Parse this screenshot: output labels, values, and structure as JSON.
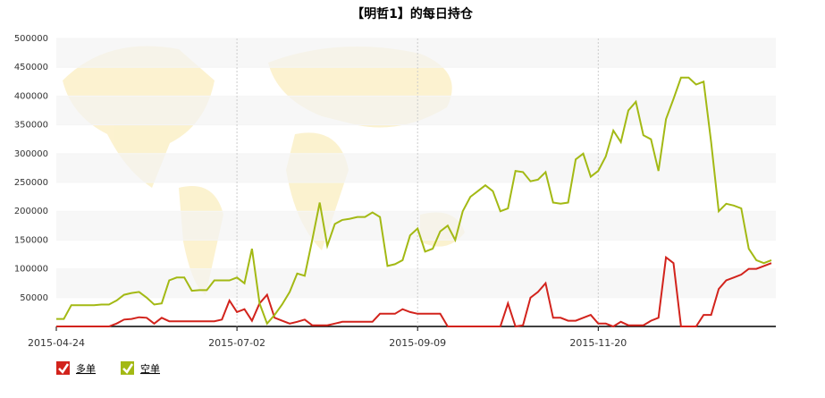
{
  "chart_data": {
    "type": "line",
    "title": "【明哲1】的每日持仓",
    "categories": [
      "2015-04-24",
      null,
      null,
      null,
      null,
      null,
      null,
      null,
      null,
      null,
      null,
      null,
      null,
      null,
      null,
      null,
      null,
      null,
      null,
      null,
      null,
      null,
      null,
      null,
      "2015-07-02",
      null,
      null,
      null,
      null,
      null,
      null,
      null,
      null,
      null,
      null,
      null,
      null,
      null,
      null,
      null,
      null,
      null,
      null,
      null,
      null,
      null,
      null,
      null,
      "2015-09-09",
      null,
      null,
      null,
      null,
      null,
      null,
      null,
      null,
      null,
      null,
      null,
      null,
      null,
      null,
      null,
      null,
      null,
      null,
      null,
      null,
      null,
      null,
      null,
      "2015-11-20",
      null,
      null,
      null,
      null,
      null,
      null,
      null,
      null,
      null,
      null,
      null,
      null,
      null,
      null,
      null,
      null,
      null,
      null,
      null,
      null,
      null,
      null,
      null
    ],
    "series": [
      {
        "name": "多单",
        "color": "#d2231c",
        "values": [
          0,
          0,
          0,
          0,
          0,
          0,
          0,
          0,
          5000,
          12000,
          13000,
          16000,
          15000,
          5000,
          15000,
          9000,
          9000,
          9000,
          9000,
          9000,
          9000,
          9000,
          12000,
          45000,
          25000,
          30000,
          10000,
          40000,
          55000,
          15000,
          10000,
          5000,
          8000,
          12000,
          2000,
          2000,
          2000,
          5000,
          8000,
          8000,
          8000,
          8000,
          8000,
          22000,
          22000,
          22000,
          30000,
          25000,
          22000,
          22000,
          22000,
          22000,
          0,
          0,
          0,
          0,
          0,
          0,
          0,
          0,
          40000,
          0,
          2000,
          50000,
          60000,
          75000,
          15000,
          15000,
          10000,
          10000,
          15000,
          20000,
          5000,
          5000,
          0,
          8000,
          2000,
          2000,
          2000,
          10000,
          15000,
          120000,
          110000,
          0,
          0,
          0,
          20000,
          20000,
          65000,
          80000,
          85000,
          90000,
          100000,
          100000,
          105000,
          110000
        ]
      },
      {
        "name": "空单",
        "color": "#a3b914",
        "values": [
          13000,
          13000,
          37000,
          37000,
          37000,
          37000,
          38000,
          38000,
          45000,
          55000,
          58000,
          60000,
          50000,
          38000,
          40000,
          80000,
          85000,
          85000,
          62000,
          63000,
          63000,
          80000,
          80000,
          80000,
          85000,
          75000,
          135000,
          40000,
          5000,
          20000,
          38000,
          60000,
          92000,
          88000,
          150000,
          215000,
          140000,
          178000,
          185000,
          187000,
          190000,
          190000,
          198000,
          190000,
          105000,
          108000,
          115000,
          158000,
          170000,
          130000,
          135000,
          165000,
          175000,
          150000,
          200000,
          225000,
          235000,
          245000,
          235000,
          200000,
          205000,
          270000,
          268000,
          252000,
          255000,
          268000,
          215000,
          213000,
          215000,
          290000,
          300000,
          260000,
          270000,
          295000,
          340000,
          320000,
          375000,
          390000,
          332000,
          325000,
          270000,
          360000,
          395000,
          432000,
          432000,
          420000,
          425000,
          320000,
          200000,
          213000,
          210000,
          205000,
          135000,
          115000,
          110000,
          115000
        ]
      }
    ],
    "ylim": [
      0,
      500000
    ],
    "yticks": [
      50000,
      100000,
      150000,
      200000,
      250000,
      300000,
      350000,
      400000,
      450000,
      500000
    ],
    "grid": true,
    "legend": "bottom-left"
  }
}
